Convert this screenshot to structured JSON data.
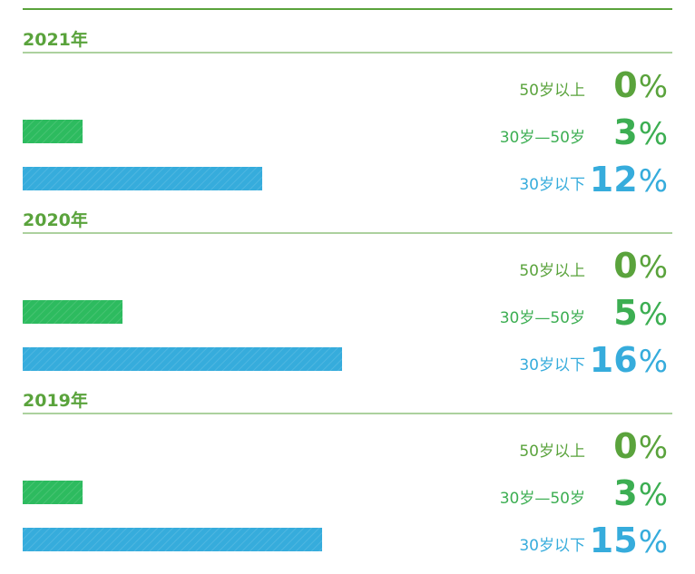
{
  "groups": [
    {
      "year": "2021年",
      "rows": [
        {
          "label": "50岁以上",
          "value": 0,
          "unit": "%"
        },
        {
          "label": "30岁—50岁",
          "value": 3,
          "unit": "%"
        },
        {
          "label": "30岁以下",
          "value": 12,
          "unit": "%"
        }
      ]
    },
    {
      "year": "2020年",
      "rows": [
        {
          "label": "50岁以上",
          "value": 0,
          "unit": "%"
        },
        {
          "label": "30岁—50岁",
          "value": 5,
          "unit": "%"
        },
        {
          "label": "30岁以下",
          "value": 16,
          "unit": "%"
        }
      ]
    },
    {
      "year": "2019年",
      "rows": [
        {
          "label": "50岁以上",
          "value": 0,
          "unit": "%"
        },
        {
          "label": "30岁—50岁",
          "value": 3,
          "unit": "%"
        },
        {
          "label": "30岁以下",
          "value": 15,
          "unit": "%"
        }
      ]
    }
  ],
  "row_colors": [
    "#5aa33c",
    "#2dbb5f",
    "#36acdc"
  ],
  "text_colors": [
    "#5aa33c",
    "#3cae52",
    "#36acdc"
  ]
}
